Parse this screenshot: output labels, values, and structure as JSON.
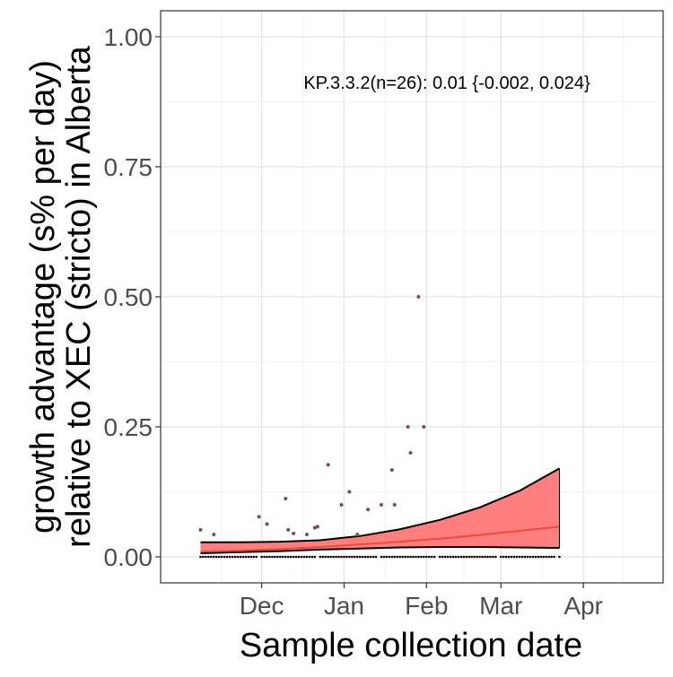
{
  "chart_data": {
    "type": "line",
    "title": "",
    "xlabel": "Sample collection date",
    "ylabel_lines": [
      "growth advantage (s% per day)",
      "relative to XEC (stricto) in Alberta"
    ],
    "annotation": "KP.3.3.2(n=26): 0.01 {-0.002, 0.024}",
    "x_date_range": [
      "2024-10-24",
      "2025-05-01"
    ],
    "ylim": [
      -0.05,
      1.05
    ],
    "x_ticks": [
      {
        "date": "2024-12-01",
        "label": "Dec"
      },
      {
        "date": "2025-01-01",
        "label": "Jan"
      },
      {
        "date": "2025-02-01",
        "label": "Feb"
      },
      {
        "date": "2025-03-01",
        "label": "Mar"
      },
      {
        "date": "2025-04-01",
        "label": "Apr"
      }
    ],
    "y_ticks": [
      0.0,
      0.25,
      0.5,
      0.75,
      1.0
    ],
    "y_tick_labels": [
      "0.00",
      "0.25",
      "0.50",
      "0.75",
      "1.00"
    ],
    "grid": true,
    "colors": {
      "ribbon": "#ff7f7f",
      "fit_line": "#f0493a",
      "ci_line": "#000000",
      "points": "#000000",
      "panel_border": "#333333"
    },
    "fit": {
      "x": [
        "2024-11-08",
        "2024-11-23",
        "2024-12-08",
        "2024-12-23",
        "2025-01-07",
        "2025-01-22",
        "2025-02-06",
        "2025-02-21",
        "2025-03-08",
        "2025-03-23"
      ],
      "y": [
        0.01,
        0.012,
        0.015,
        0.019,
        0.024,
        0.029,
        0.035,
        0.042,
        0.05,
        0.058
      ],
      "lower": [
        0.007,
        0.009,
        0.011,
        0.014,
        0.016,
        0.018,
        0.019,
        0.019,
        0.018,
        0.017
      ],
      "upper": [
        0.028,
        0.028,
        0.029,
        0.032,
        0.04,
        0.053,
        0.071,
        0.095,
        0.127,
        0.17
      ]
    },
    "points": [
      {
        "x": "2024-11-08",
        "y": 0.052
      },
      {
        "x": "2024-11-13",
        "y": 0.043
      },
      {
        "x": "2024-11-30",
        "y": 0.077
      },
      {
        "x": "2024-12-03",
        "y": 0.063
      },
      {
        "x": "2024-12-10",
        "y": 0.112
      },
      {
        "x": "2024-12-11",
        "y": 0.052
      },
      {
        "x": "2024-12-13",
        "y": 0.045
      },
      {
        "x": "2024-12-18",
        "y": 0.043
      },
      {
        "x": "2024-12-21",
        "y": 0.056
      },
      {
        "x": "2024-12-22",
        "y": 0.058
      },
      {
        "x": "2024-12-26",
        "y": 0.177
      },
      {
        "x": "2024-12-31",
        "y": 0.1
      },
      {
        "x": "2025-01-03",
        "y": 0.125
      },
      {
        "x": "2025-01-06",
        "y": 0.043
      },
      {
        "x": "2025-01-10",
        "y": 0.091
      },
      {
        "x": "2025-01-15",
        "y": 0.1
      },
      {
        "x": "2025-01-19",
        "y": 0.167
      },
      {
        "x": "2025-01-20",
        "y": 0.1
      },
      {
        "x": "2025-01-25",
        "y": 0.25
      },
      {
        "x": "2025-01-26",
        "y": 0.2
      },
      {
        "x": "2025-01-29",
        "y": 0.5
      },
      {
        "x": "2025-01-31",
        "y": 0.25
      }
    ],
    "zero_points_range": [
      "2024-11-08",
      "2025-03-23"
    ],
    "zero_points_count": 130
  }
}
